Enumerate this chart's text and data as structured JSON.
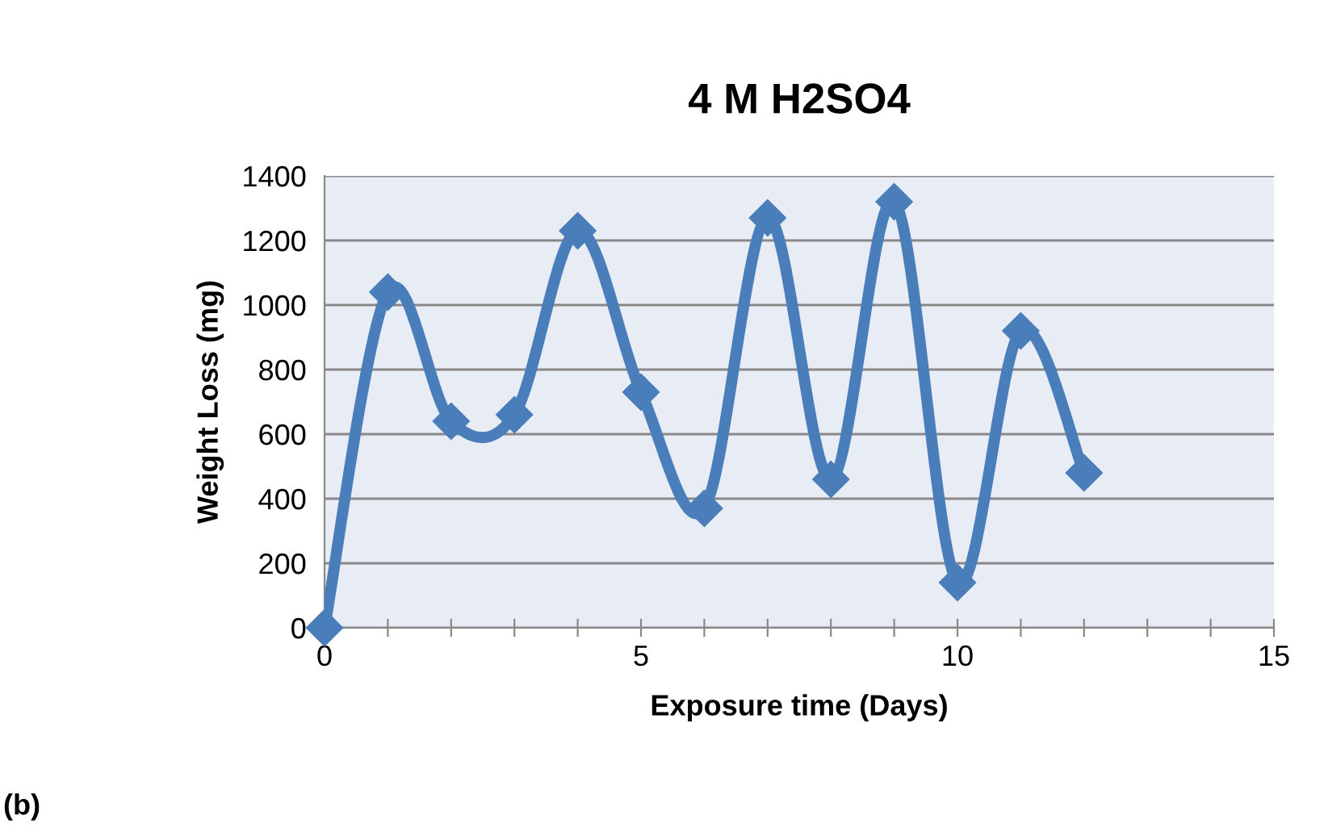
{
  "chart_data": {
    "type": "line",
    "title": "4 M H2SO4",
    "xlabel": "Exposure time (Days)",
    "ylabel": "Weight Loss (mg)",
    "x": [
      0,
      1,
      2,
      3,
      4,
      5,
      6,
      7,
      8,
      9,
      10,
      11,
      12
    ],
    "series": [
      {
        "color": "#4a7ebb",
        "values": [
          0,
          1040,
          640,
          660,
          1230,
          730,
          370,
          1270,
          460,
          1320,
          140,
          920,
          480
        ]
      }
    ],
    "xlim": [
      0,
      15
    ],
    "ylim": [
      0,
      1400
    ],
    "xticks": [
      0,
      {
        "value": 1,
        "label": null
      },
      {
        "value": 2,
        "label": null
      },
      {
        "value": 3,
        "label": null
      },
      {
        "value": 4,
        "label": null
      },
      5,
      {
        "value": 6,
        "label": null
      },
      {
        "value": 7,
        "label": null
      },
      {
        "value": 8,
        "label": null
      },
      {
        "value": 9,
        "label": null
      },
      10,
      {
        "value": 11,
        "label": null
      },
      {
        "value": 12,
        "label": null
      },
      {
        "value": 13,
        "label": null
      },
      {
        "value": 14,
        "label": null
      },
      15
    ],
    "yticks": [
      0,
      200,
      400,
      600,
      800,
      1000,
      1200,
      1400
    ],
    "grid": "y",
    "marker": "diamond",
    "line_style": "solid",
    "annotations": [
      "(b)"
    ]
  }
}
